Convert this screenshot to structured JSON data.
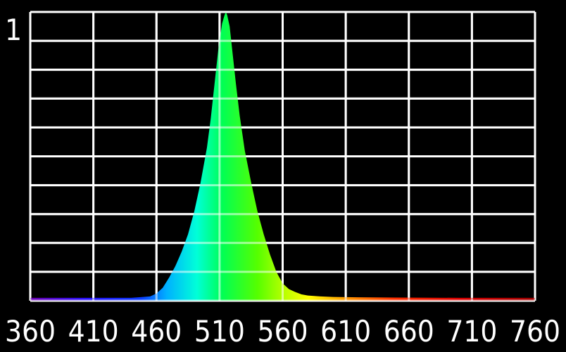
{
  "chart_data": {
    "type": "area",
    "title": "",
    "xlabel": "",
    "ylabel": "",
    "xlim": [
      360,
      760
    ],
    "ylim": [
      0,
      1
    ],
    "grid": true,
    "x_ticks": [
      "360",
      "410",
      "460",
      "510",
      "560",
      "610",
      "660",
      "710",
      "760"
    ],
    "y_ticks": [
      "1"
    ],
    "background_color": "#000000",
    "grid_color": "#ffffff",
    "fill": "wavelength-spectrum",
    "series": [
      {
        "x": [
          360,
          380,
          400,
          420,
          440,
          455,
          460,
          465,
          470,
          475,
          480,
          485,
          490,
          495,
          500,
          503,
          506,
          509,
          512,
          514,
          515,
          516,
          518,
          520,
          523,
          526,
          530,
          535,
          540,
          545,
          550,
          555,
          560,
          565,
          570,
          575,
          580,
          590,
          600,
          620,
          650,
          700,
          760
        ],
        "values": [
          0.01,
          0.01,
          0.01,
          0.01,
          0.01,
          0.015,
          0.025,
          0.045,
          0.08,
          0.12,
          0.17,
          0.23,
          0.31,
          0.41,
          0.53,
          0.63,
          0.75,
          0.87,
          0.96,
          0.99,
          1.0,
          0.99,
          0.95,
          0.87,
          0.75,
          0.64,
          0.52,
          0.41,
          0.31,
          0.23,
          0.16,
          0.1,
          0.06,
          0.04,
          0.03,
          0.022,
          0.018,
          0.015,
          0.013,
          0.012,
          0.011,
          0.01,
          0.01
        ]
      }
    ]
  }
}
